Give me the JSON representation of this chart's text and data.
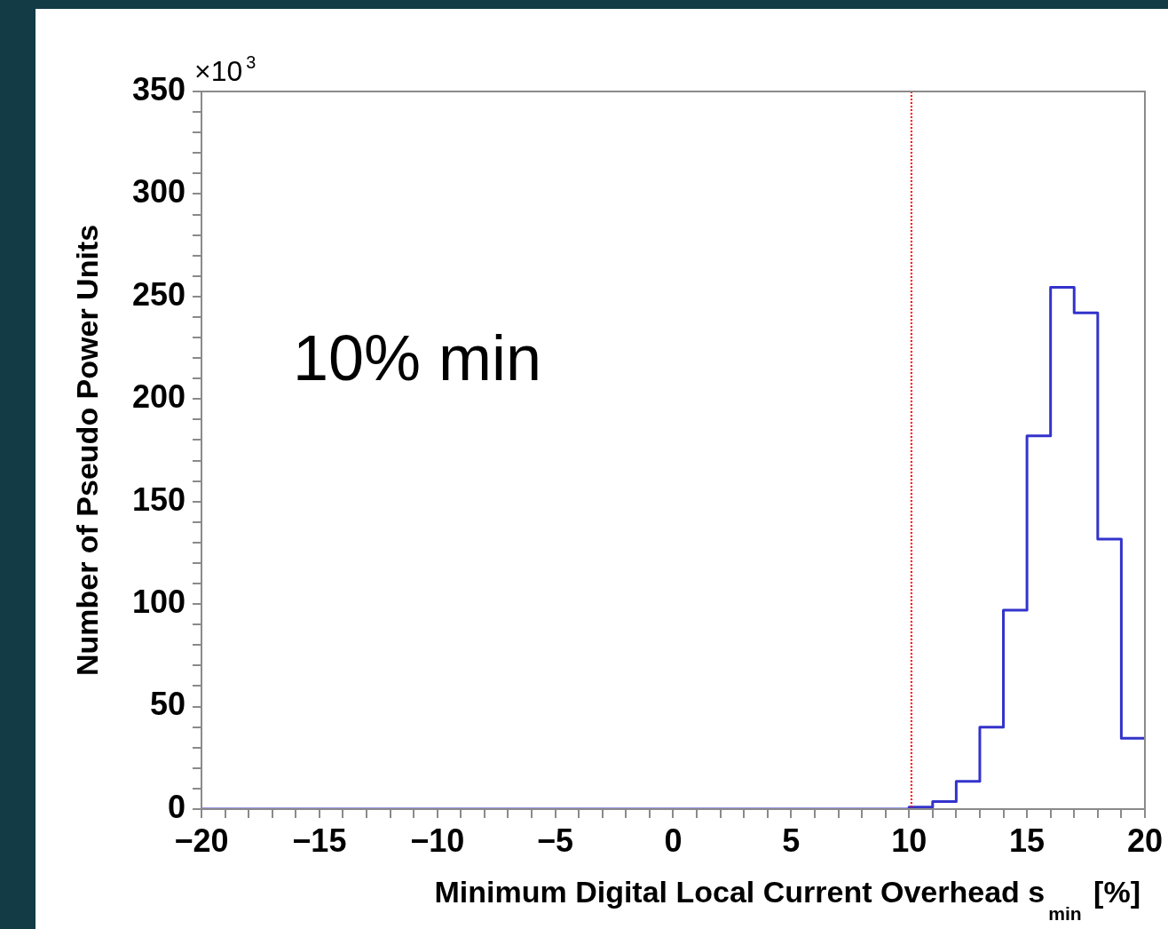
{
  "chart_data": {
    "type": "histogram",
    "xlabel": "Minimum Digital Local Current Overhead s$_{min}$ [%]",
    "ylabel": "Number of Pseudo Power Units",
    "annotations": [
      "×10$^{3}$",
      "10% min"
    ],
    "bins": [
      -20,
      -19,
      -18,
      -17,
      -16,
      -15,
      -14,
      -13,
      -12,
      -11,
      -10,
      -9,
      -8,
      -7,
      -6,
      -5,
      -4,
      -3,
      -2,
      -1,
      0,
      1,
      2,
      3,
      4,
      5,
      6,
      7,
      8,
      9,
      10,
      11,
      12,
      13,
      14,
      15,
      16,
      17,
      18,
      19,
      20
    ],
    "values": [
      0,
      0,
      0,
      0,
      0,
      0,
      0,
      0,
      0,
      0,
      0,
      0,
      0,
      0,
      0,
      0,
      0,
      0,
      0,
      0,
      0,
      0,
      0,
      0,
      0,
      0,
      0,
      0,
      0,
      0,
      1,
      3.7,
      13.5,
      40,
      97,
      182,
      254.5,
      242,
      131.7,
      34.5
    ],
    "color": "#3333cc",
    "xlim": [
      -20,
      20
    ],
    "xticks": [
      -20,
      {
        "value": -19,
        "label": null
      },
      {
        "value": -18,
        "label": null
      },
      {
        "value": -17,
        "label": null
      },
      {
        "value": -16,
        "label": null
      },
      -15,
      {
        "value": -14,
        "label": null
      },
      {
        "value": -13,
        "label": null
      },
      {
        "value": -12,
        "label": null
      },
      {
        "value": -11,
        "label": null
      },
      -10,
      {
        "value": -9,
        "label": null
      },
      {
        "value": -8,
        "label": null
      },
      {
        "value": -7,
        "label": null
      },
      {
        "value": -6,
        "label": null
      },
      -5,
      {
        "value": -4,
        "label": null
      },
      {
        "value": -3,
        "label": null
      },
      {
        "value": -2,
        "label": null
      },
      {
        "value": -1,
        "label": null
      },
      0,
      {
        "value": 1,
        "label": null
      },
      {
        "value": 2,
        "label": null
      },
      {
        "value": 3,
        "label": null
      },
      {
        "value": 4,
        "label": null
      },
      5,
      {
        "value": 6,
        "label": null
      },
      {
        "value": 7,
        "label": null
      },
      {
        "value": 8,
        "label": null
      },
      {
        "value": 9,
        "label": null
      },
      10,
      {
        "value": 11,
        "label": null
      },
      {
        "value": 12,
        "label": null
      },
      {
        "value": 13,
        "label": null
      },
      {
        "value": 14,
        "label": null
      },
      15,
      {
        "value": 16,
        "label": null
      },
      {
        "value": 17,
        "label": null
      },
      {
        "value": 18,
        "label": null
      },
      {
        "value": 19,
        "label": null
      },
      20
    ],
    "ylim": [
      0,
      350
    ],
    "yticks": [
      0,
      {
        "value": 10,
        "label": null
      },
      {
        "value": 20,
        "label": null
      },
      {
        "value": 30,
        "label": null
      },
      {
        "value": 40,
        "label": null
      },
      50,
      {
        "value": 60,
        "label": null
      },
      {
        "value": 70,
        "label": null
      },
      {
        "value": 80,
        "label": null
      },
      {
        "value": 90,
        "label": null
      },
      100,
      {
        "value": 110,
        "label": null
      },
      {
        "value": 120,
        "label": null
      },
      {
        "value": 130,
        "label": null
      },
      {
        "value": 140,
        "label": null
      },
      150,
      {
        "value": 160,
        "label": null
      },
      {
        "value": 170,
        "label": null
      },
      {
        "value": 180,
        "label": null
      },
      {
        "value": 190,
        "label": null
      },
      200,
      {
        "value": 210,
        "label": null
      },
      {
        "value": 220,
        "label": null
      },
      {
        "value": 230,
        "label": null
      },
      {
        "value": 240,
        "label": null
      },
      250,
      {
        "value": 260,
        "label": null
      },
      {
        "value": 270,
        "label": null
      },
      {
        "value": 280,
        "label": null
      },
      {
        "value": 290,
        "label": null
      },
      300,
      {
        "value": 310,
        "label": null
      },
      {
        "value": 320,
        "label": null
      },
      {
        "value": 330,
        "label": null
      },
      {
        "value": 340,
        "label": null
      },
      350
    ],
    "ref_lines": [
      {
        "axis": "x",
        "value": 10.1,
        "color": "#ff0000",
        "line_style": "dotted"
      }
    ],
    "grid": false,
    "legend": false
  }
}
